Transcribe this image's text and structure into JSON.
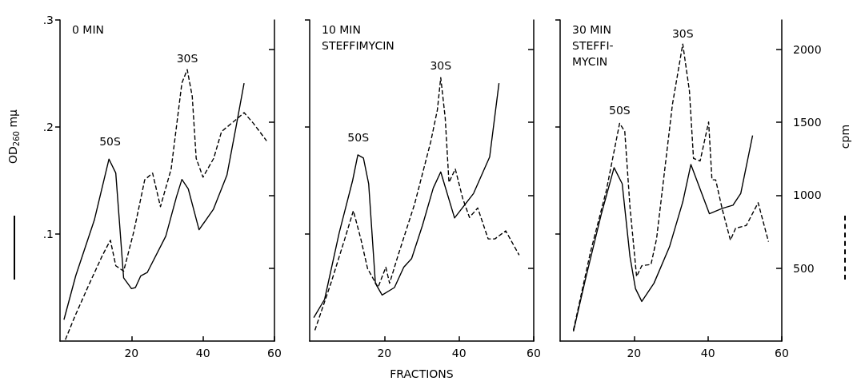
{
  "chart_data": [
    {
      "type": "line",
      "title": "0 MIN",
      "ylabel": "OD$_{260}$ mμ",
      "xlim": [
        0,
        60
      ],
      "xticks": [
        20,
        40,
        60
      ],
      "ylim": [
        0,
        0.3
      ],
      "yticks": [
        {
          "value": 0.1,
          "label": ".1"
        },
        {
          "value": 0.2,
          "label": ".2"
        },
        {
          "value": 0.3,
          "label": ".3"
        }
      ],
      "y2lim": [
        0,
        2200
      ],
      "tick_labels": "xy",
      "grid": false,
      "marker": "none",
      "annotations": [
        {
          "text": "50S",
          "x": 14,
          "y": 0.17
        },
        {
          "text": "30S",
          "x": 35.6,
          "y": 0.248
        }
      ],
      "series": [
        {
          "color": "#000000",
          "line_style": "solid",
          "x": [
            1.1,
            4.4,
            9.6,
            13.7,
            15.6,
            17.8,
            20,
            21.1,
            22.6,
            24.4,
            29.6,
            32.6,
            34.1,
            35.9,
            38.9,
            42.9,
            46.7,
            49.3,
            51.5
          ],
          "values": [
            0.02,
            0.061,
            0.113,
            0.17,
            0.157,
            0.059,
            0.049,
            0.05,
            0.061,
            0.064,
            0.098,
            0.135,
            0.151,
            0.142,
            0.104,
            0.123,
            0.155,
            0.201,
            0.241
          ]
        },
        {
          "color": "#000000",
          "line_style": "dashed",
          "axis": "y2",
          "x": [
            1.5,
            4.1,
            8.1,
            11.9,
            14.1,
            15.6,
            17.8,
            20.7,
            23.7,
            25.9,
            28.1,
            31.1,
            34.1,
            35.6,
            37,
            38.1,
            40,
            43,
            45.2,
            48.9,
            51.5,
            54.1,
            57.8
          ],
          "values": [
            10,
            166,
            387,
            589,
            691,
            516,
            479,
            755,
            1105,
            1151,
            921,
            1179,
            1768,
            1860,
            1676,
            1252,
            1123,
            1252,
            1436,
            1510,
            1565,
            1492,
            1372
          ]
        }
      ]
    },
    {
      "type": "line",
      "title": "10 MIN\nSTEFFIMYCIN",
      "xlabel": "FRACTIONS",
      "xlim": [
        0,
        60
      ],
      "xticks": [
        20,
        40,
        60
      ],
      "ylim": [
        0,
        0.3
      ],
      "y2lim": [
        0,
        2200
      ],
      "tick_labels": "x",
      "grid": false,
      "marker": "none",
      "annotations": [
        {
          "text": "50S",
          "x": 13,
          "y": 0.174
        },
        {
          "text": "30S",
          "x": 35.1,
          "y": 0.241
        }
      ],
      "series": [
        {
          "color": "#000000",
          "line_style": "solid",
          "x": [
            1.1,
            4,
            7.9,
            11.5,
            12.9,
            14.4,
            15.8,
            17.6,
            19.4,
            22.7,
            25.2,
            27.3,
            30.2,
            33.1,
            35.1,
            38.8,
            43.9,
            48.2,
            50.7
          ],
          "values": [
            0.022,
            0.039,
            0.101,
            0.15,
            0.174,
            0.171,
            0.147,
            0.054,
            0.043,
            0.05,
            0.069,
            0.077,
            0.108,
            0.143,
            0.158,
            0.115,
            0.138,
            0.172,
            0.241
          ]
        },
        {
          "color": "#000000",
          "line_style": "dashed",
          "axis": "y2",
          "x": [
            1.4,
            5.8,
            9.4,
            11.7,
            13.7,
            15.5,
            18.3,
            20.4,
            21.4,
            23.7,
            28.1,
            32.4,
            34.2,
            35.1,
            36.3,
            37.3,
            39,
            41,
            42.8,
            45,
            47.8,
            49.6,
            52.5,
            56.1
          ],
          "values": [
            74,
            405,
            700,
            893,
            700,
            497,
            368,
            506,
            396,
            589,
            939,
            1363,
            1584,
            1805,
            1528,
            1087,
            1179,
            976,
            847,
            912,
            700,
            700,
            755,
            589
          ]
        }
      ]
    },
    {
      "type": "line",
      "title": "30 MIN\nSTEFFI-\nMYCIN",
      "y2label": "cpm",
      "xlim": [
        0,
        60
      ],
      "xticks": [
        20,
        40,
        60
      ],
      "ylim": [
        0,
        0.3
      ],
      "y2lim": [
        0,
        2200
      ],
      "y2ticks": [
        500,
        1000,
        1500,
        2000
      ],
      "tick_labels": "xy2",
      "grid": false,
      "marker": "none",
      "annotations": [
        {
          "text": "50S",
          "x": 16.1,
          "y": 0.199
        },
        {
          "text": "30S",
          "x": 33.2,
          "y": 0.271
        }
      ],
      "series": [
        {
          "color": "#000000",
          "line_style": "solid",
          "x": [
            3.6,
            6.8,
            11.1,
            14.6,
            16.8,
            18.9,
            20.4,
            22.1,
            25.4,
            29.6,
            33.2,
            35.4,
            40.4,
            43.9,
            46.8,
            48.9,
            52.1
          ],
          "values": [
            0.009,
            0.057,
            0.118,
            0.162,
            0.147,
            0.079,
            0.049,
            0.037,
            0.054,
            0.088,
            0.13,
            0.165,
            0.119,
            0.124,
            0.127,
            0.138,
            0.192
          ]
        },
        {
          "color": "#000000",
          "line_style": "dashed",
          "axis": "y2",
          "x": [
            3.6,
            8.2,
            12.5,
            16.1,
            17.5,
            18.9,
            20.7,
            22.1,
            24.6,
            26.1,
            30.4,
            33.2,
            35,
            36.1,
            37.9,
            40.2,
            41.1,
            42.1,
            43.9,
            46.1,
            47.5,
            50.4,
            53.6,
            56.4
          ],
          "values": [
            74,
            608,
            1031,
            1492,
            1436,
            921,
            442,
            516,
            525,
            700,
            1621,
            2035,
            1713,
            1252,
            1234,
            1501,
            1105,
            1105,
            902,
            691,
            773,
            792,
            948,
            681
          ]
        }
      ]
    }
  ]
}
